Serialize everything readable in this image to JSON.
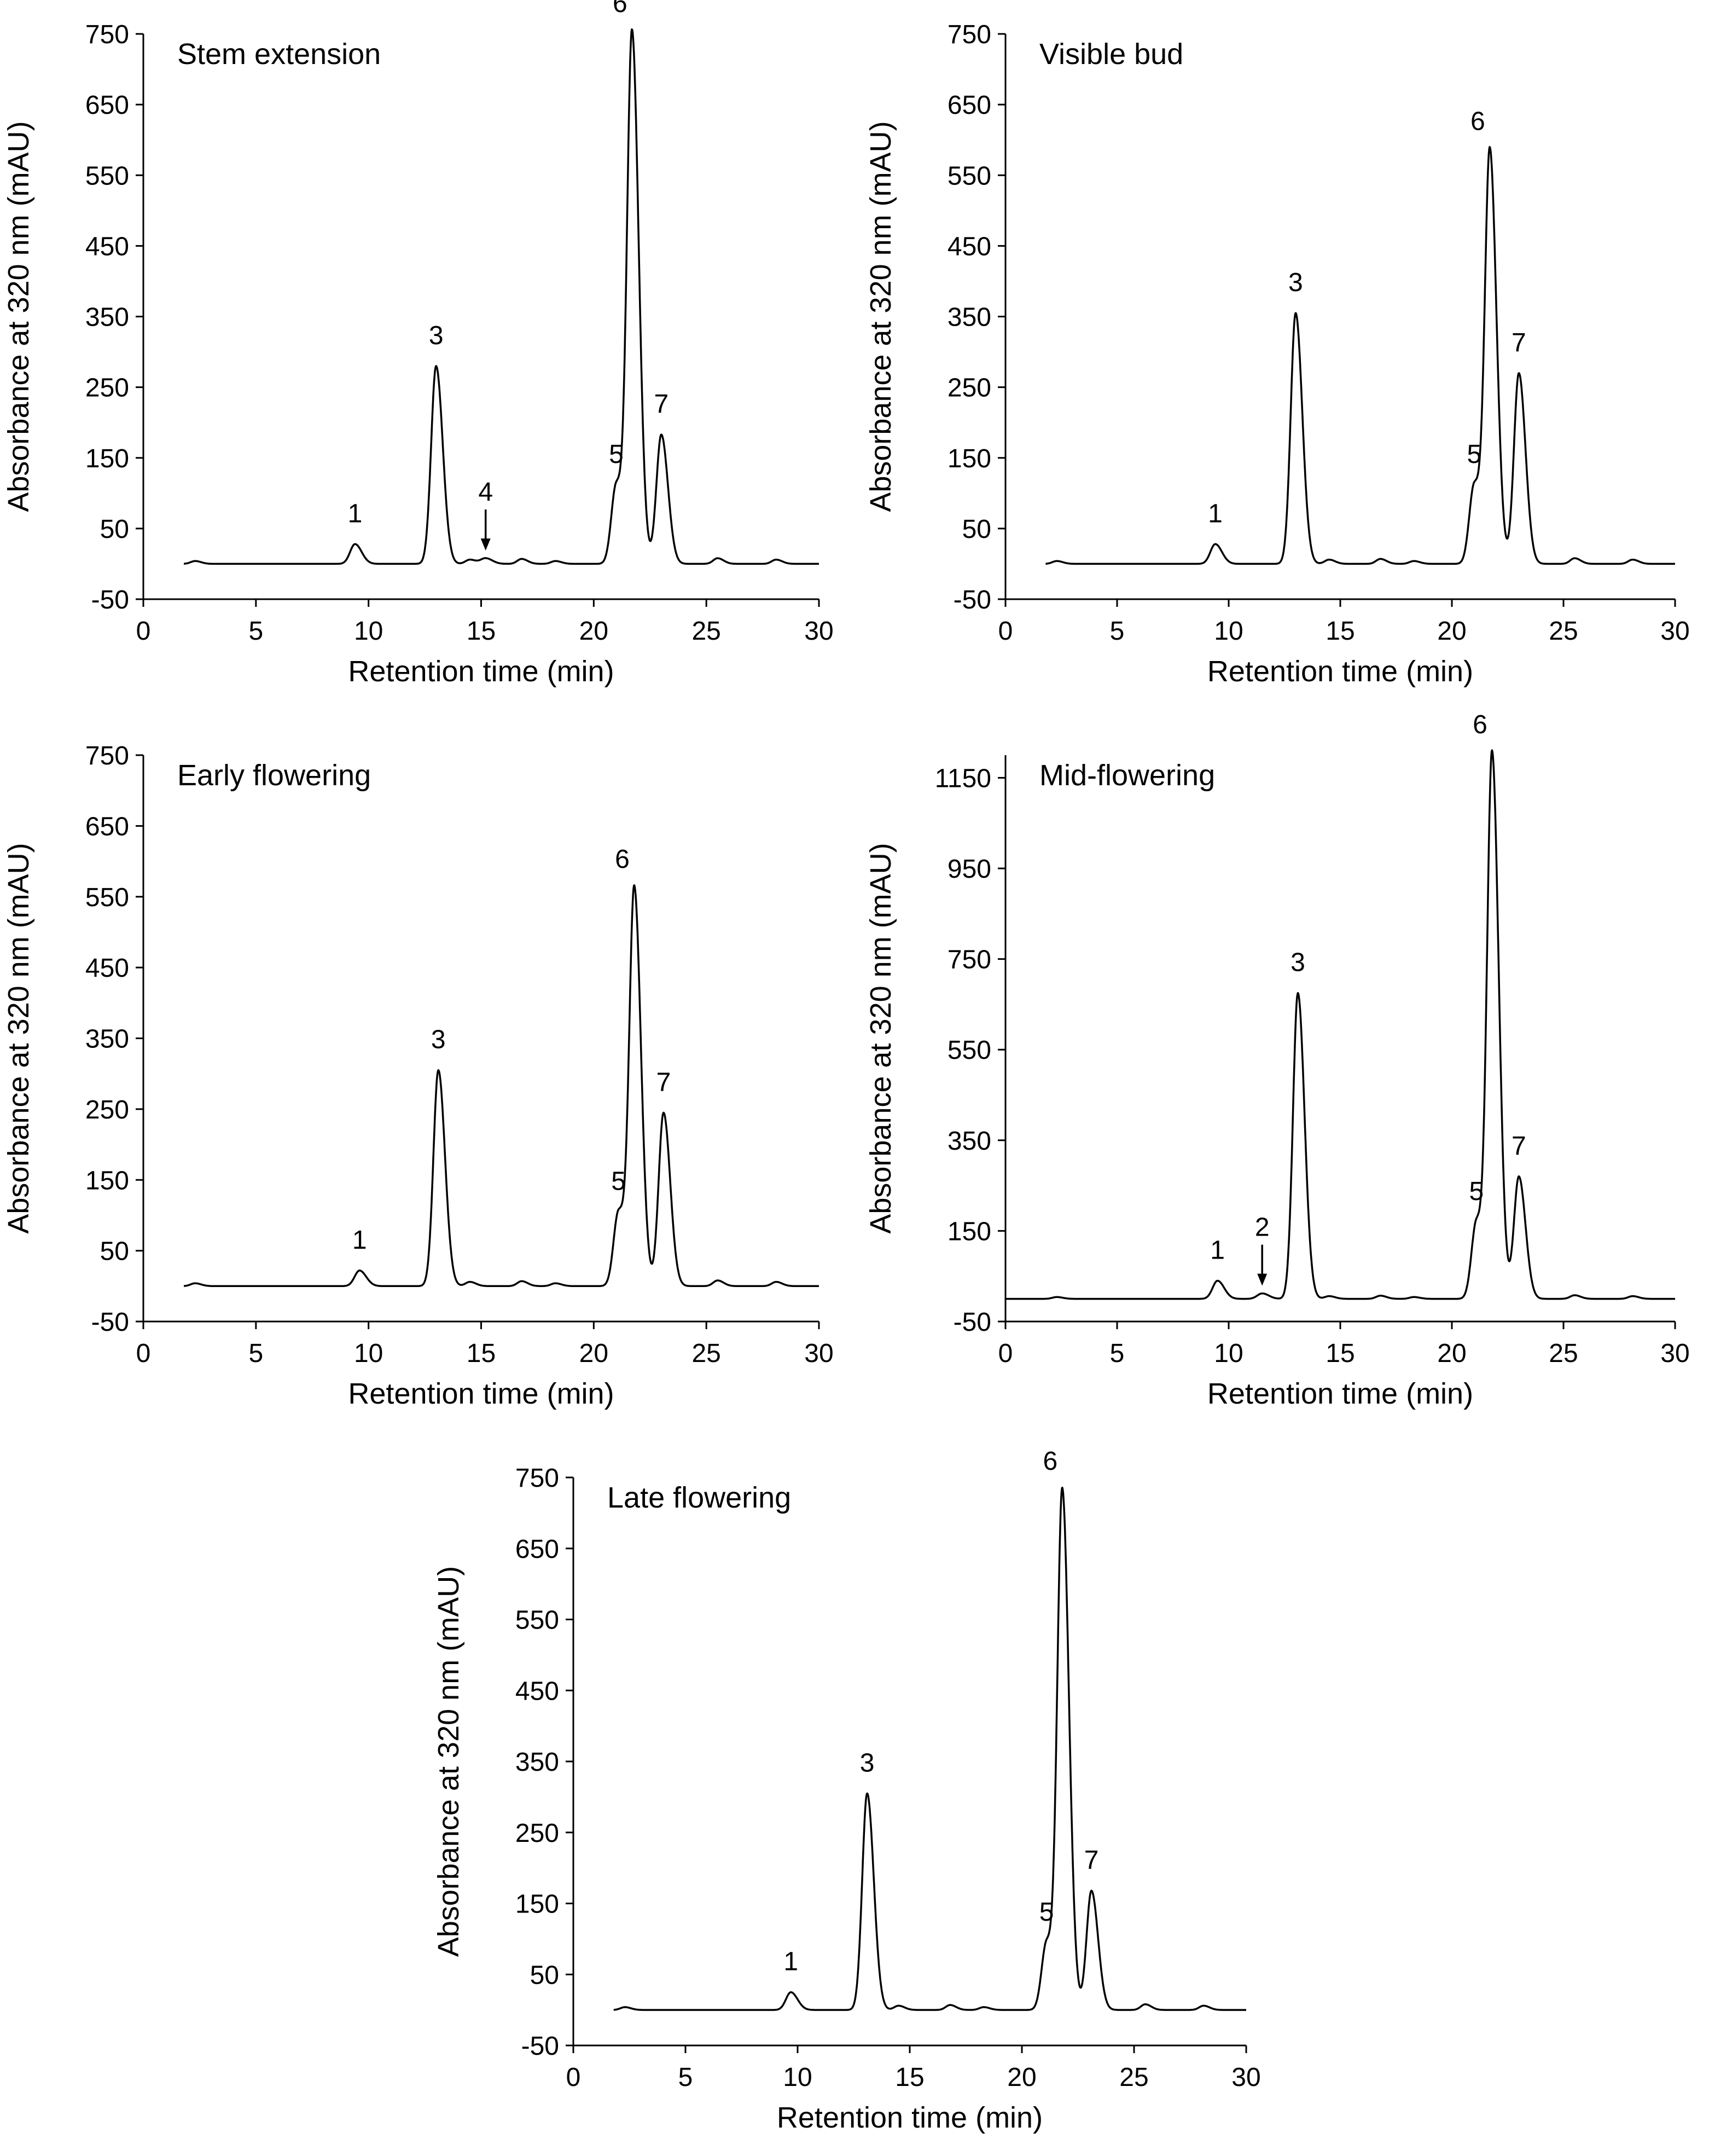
{
  "figure": {
    "background": "#ffffff",
    "line_color": "#000000"
  },
  "chart_data": [
    {
      "id": "stem-extension",
      "type": "line",
      "panel_label": "Stem extension",
      "xlabel": "Retention time (min)",
      "ylabel": "Absorbance at 320 nm (mAU)",
      "xlim": [
        0,
        30
      ],
      "ylim": [
        -50,
        750
      ],
      "xticks": [
        0,
        5,
        10,
        15,
        20,
        25,
        30
      ],
      "yticks": [
        -50,
        50,
        150,
        250,
        350,
        450,
        550,
        650,
        750
      ],
      "baseline": 0,
      "trace_start": 1.8,
      "trace_end": 30,
      "peaks": [
        {
          "label": "1",
          "x": 9.4,
          "y": 28
        },
        {
          "label": "3",
          "x": 13.0,
          "y": 280
        },
        {
          "label": "4",
          "x": 15.2,
          "y": 8,
          "arrow": true
        },
        {
          "label": "5",
          "x": 21.0,
          "y": 112
        },
        {
          "label": "6",
          "x": 21.7,
          "y": 750
        },
        {
          "label": "7",
          "x": 23.0,
          "y": 183
        }
      ]
    },
    {
      "id": "visible-bud",
      "type": "line",
      "panel_label": "Visible bud",
      "xlabel": "Retention time (min)",
      "ylabel": "Absorbance at 320 nm (mAU)",
      "xlim": [
        0,
        30
      ],
      "ylim": [
        -50,
        750
      ],
      "xticks": [
        0,
        5,
        10,
        15,
        20,
        25,
        30
      ],
      "yticks": [
        -50,
        50,
        150,
        250,
        350,
        450,
        550,
        650,
        750
      ],
      "baseline": 0,
      "trace_start": 1.8,
      "trace_end": 30,
      "peaks": [
        {
          "label": "1",
          "x": 9.4,
          "y": 28
        },
        {
          "label": "3",
          "x": 13.0,
          "y": 355
        },
        {
          "label": "5",
          "x": 21.0,
          "y": 112
        },
        {
          "label": "6",
          "x": 21.7,
          "y": 583
        },
        {
          "label": "7",
          "x": 23.0,
          "y": 270
        }
      ]
    },
    {
      "id": "early-flowering",
      "type": "line",
      "panel_label": "Early flowering",
      "xlabel": "Retention time (min)",
      "ylabel": "Absorbance at 320 nm (mAU)",
      "xlim": [
        0,
        30
      ],
      "ylim": [
        -50,
        750
      ],
      "xticks": [
        0,
        5,
        10,
        15,
        20,
        25,
        30
      ],
      "yticks": [
        -50,
        50,
        150,
        250,
        350,
        450,
        550,
        650,
        750
      ],
      "baseline": 0,
      "trace_start": 1.8,
      "trace_end": 30,
      "peaks": [
        {
          "label": "1",
          "x": 9.6,
          "y": 22
        },
        {
          "label": "3",
          "x": 13.1,
          "y": 305
        },
        {
          "label": "5",
          "x": 21.1,
          "y": 105
        },
        {
          "label": "6",
          "x": 21.8,
          "y": 560
        },
        {
          "label": "7",
          "x": 23.1,
          "y": 245
        }
      ]
    },
    {
      "id": "mid-flowering",
      "type": "line",
      "panel_label": "Mid-flowering",
      "xlabel": "Retention time (min)",
      "ylabel": "Absorbance at 320 nm (mAU)",
      "xlim": [
        0,
        30
      ],
      "ylim": [
        -50,
        1200
      ],
      "xticks": [
        0,
        5,
        10,
        15,
        20,
        25,
        30
      ],
      "yticks": [
        -50,
        150,
        350,
        550,
        750,
        950,
        1150
      ],
      "baseline": 0,
      "trace_start": 0,
      "trace_end": 30,
      "peaks": [
        {
          "label": "1",
          "x": 9.5,
          "y": 40
        },
        {
          "label": "2",
          "x": 11.5,
          "y": 12,
          "arrow": true
        },
        {
          "label": "3",
          "x": 13.1,
          "y": 675
        },
        {
          "label": "5",
          "x": 21.1,
          "y": 170
        },
        {
          "label": "6",
          "x": 21.8,
          "y": 1200
        },
        {
          "label": "7",
          "x": 23.0,
          "y": 270
        }
      ]
    },
    {
      "id": "late-flowering",
      "type": "line",
      "panel_label": "Late flowering",
      "xlabel": "Retention time (min)",
      "ylabel": "Absorbance at 320 nm (mAU)",
      "xlim": [
        0,
        30
      ],
      "ylim": [
        -50,
        750
      ],
      "xticks": [
        0,
        5,
        10,
        15,
        20,
        25,
        30
      ],
      "yticks": [
        -50,
        50,
        150,
        250,
        350,
        450,
        550,
        650,
        750
      ],
      "baseline": 0,
      "trace_start": 1.8,
      "trace_end": 30,
      "peaks": [
        {
          "label": "1",
          "x": 9.7,
          "y": 25
        },
        {
          "label": "3",
          "x": 13.1,
          "y": 305
        },
        {
          "label": "5",
          "x": 21.1,
          "y": 95
        },
        {
          "label": "6",
          "x": 21.8,
          "y": 730
        },
        {
          "label": "7",
          "x": 23.1,
          "y": 168
        }
      ]
    }
  ]
}
